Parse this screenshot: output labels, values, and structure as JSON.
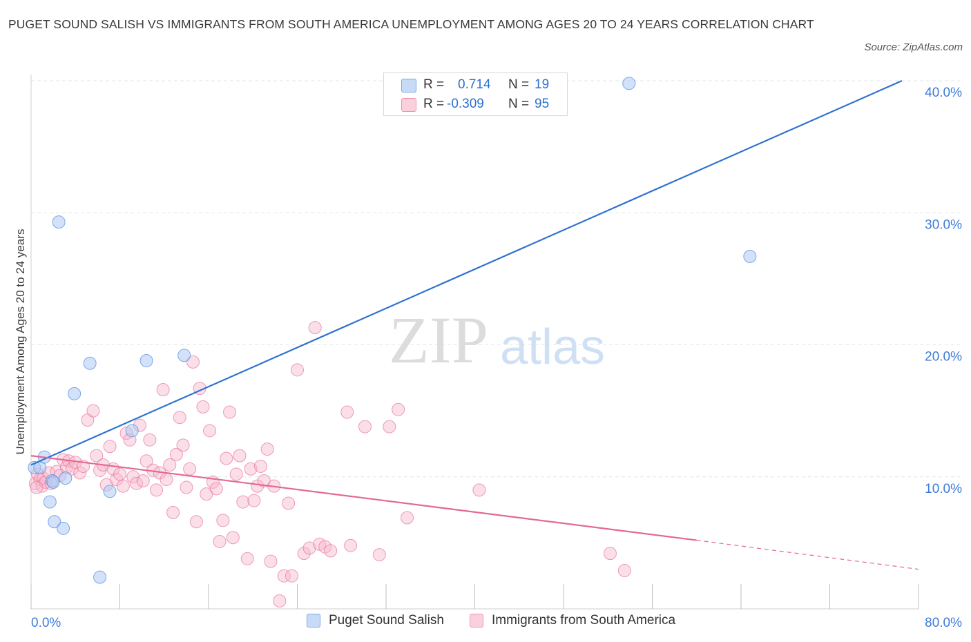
{
  "title": "PUGET SOUND SALISH VS IMMIGRANTS FROM SOUTH AMERICA UNEMPLOYMENT AMONG AGES 20 TO 24 YEARS CORRELATION CHART",
  "source": "Source: ZipAtlas.com",
  "watermark": {
    "zip": "ZIP",
    "atlas": "atlas"
  },
  "stats": [
    {
      "r_label": "R =",
      "r_value": "0.714",
      "n_label": "N =",
      "n_value": "19",
      "color": "#aecbf2"
    },
    {
      "r_label": "R =",
      "r_value": "-0.309",
      "n_label": "N =",
      "n_value": "95",
      "color": "#f6b8cb"
    }
  ],
  "chart_data": {
    "type": "scatter",
    "title": "PUGET SOUND SALISH VS IMMIGRANTS FROM SOUTH AMERICA UNEMPLOYMENT AMONG AGES 20 TO 24 YEARS CORRELATION CHART",
    "xlabel": "",
    "ylabel": "Unemployment Among Ages 20 to 24 years",
    "xlim": [
      0,
      80
    ],
    "ylim": [
      0,
      40
    ],
    "x_tick_labels": [
      "0.0%",
      "80.0%"
    ],
    "y_tick_labels": [
      "10.0%",
      "20.0%",
      "30.0%",
      "40.0%"
    ],
    "y_ticks": [
      10,
      20,
      30,
      40
    ],
    "grid": true,
    "legend": "bottom",
    "series": [
      {
        "name": "Puget Sound Salish",
        "color": "#5b95e6",
        "fill": "#aecbf2",
        "points": [
          [
            0.3,
            10.7
          ],
          [
            0.8,
            10.7
          ],
          [
            1.2,
            11.5
          ],
          [
            1.7,
            8.1
          ],
          [
            1.9,
            9.7
          ],
          [
            2.0,
            9.6
          ],
          [
            2.1,
            6.6
          ],
          [
            2.5,
            29.3
          ],
          [
            2.9,
            6.1
          ],
          [
            3.1,
            9.9
          ],
          [
            3.9,
            16.3
          ],
          [
            5.3,
            18.6
          ],
          [
            6.2,
            2.4
          ],
          [
            7.1,
            8.9
          ],
          [
            9.1,
            13.5
          ],
          [
            10.4,
            18.8
          ],
          [
            13.8,
            19.2
          ],
          [
            53.9,
            39.8
          ],
          [
            64.8,
            26.7
          ]
        ],
        "trend": {
          "x0": 0,
          "y0": 10.9,
          "x1": 78.5,
          "y1": 40.0
        }
      },
      {
        "name": "Immigrants from South America",
        "color": "#e8729a",
        "fill": "#f6b8cb",
        "points": [
          [
            0.4,
            9.5
          ],
          [
            0.6,
            10.2
          ],
          [
            0.8,
            9.8
          ],
          [
            1.0,
            9.3
          ],
          [
            1.1,
            9.9
          ],
          [
            1.3,
            9.6
          ],
          [
            1.6,
            10.3
          ],
          [
            1.8,
            9.5
          ],
          [
            2.3,
            10.4
          ],
          [
            2.6,
            10.1
          ],
          [
            2.9,
            11.3
          ],
          [
            3.2,
            10.7
          ],
          [
            3.4,
            11.2
          ],
          [
            3.7,
            10.6
          ],
          [
            4.0,
            11.1
          ],
          [
            4.4,
            10.3
          ],
          [
            4.7,
            10.8
          ],
          [
            5.1,
            14.3
          ],
          [
            5.6,
            15.0
          ],
          [
            5.9,
            11.6
          ],
          [
            6.2,
            10.5
          ],
          [
            6.5,
            10.9
          ],
          [
            6.8,
            9.4
          ],
          [
            7.1,
            12.3
          ],
          [
            7.4,
            10.6
          ],
          [
            7.7,
            9.8
          ],
          [
            8.0,
            10.2
          ],
          [
            8.3,
            9.3
          ],
          [
            8.6,
            13.3
          ],
          [
            8.9,
            12.8
          ],
          [
            9.2,
            10.0
          ],
          [
            9.5,
            9.5
          ],
          [
            9.8,
            13.9
          ],
          [
            10.1,
            9.7
          ],
          [
            10.4,
            11.2
          ],
          [
            10.7,
            12.8
          ],
          [
            11.0,
            10.5
          ],
          [
            11.3,
            9.0
          ],
          [
            11.6,
            10.3
          ],
          [
            11.9,
            16.6
          ],
          [
            12.2,
            9.8
          ],
          [
            12.5,
            10.9
          ],
          [
            12.8,
            7.3
          ],
          [
            13.1,
            11.7
          ],
          [
            13.4,
            14.5
          ],
          [
            13.7,
            12.4
          ],
          [
            14.0,
            9.2
          ],
          [
            14.3,
            10.6
          ],
          [
            14.6,
            18.7
          ],
          [
            14.9,
            6.6
          ],
          [
            15.2,
            16.7
          ],
          [
            15.5,
            15.3
          ],
          [
            15.8,
            8.7
          ],
          [
            16.1,
            13.5
          ],
          [
            16.4,
            9.6
          ],
          [
            16.7,
            9.1
          ],
          [
            17.0,
            5.1
          ],
          [
            17.3,
            6.7
          ],
          [
            17.6,
            11.4
          ],
          [
            17.9,
            14.9
          ],
          [
            18.2,
            5.4
          ],
          [
            18.5,
            10.2
          ],
          [
            18.8,
            11.6
          ],
          [
            19.1,
            8.1
          ],
          [
            19.5,
            3.8
          ],
          [
            19.8,
            10.6
          ],
          [
            20.1,
            8.2
          ],
          [
            20.4,
            9.3
          ],
          [
            20.7,
            10.8
          ],
          [
            21.0,
            9.7
          ],
          [
            21.3,
            12.1
          ],
          [
            21.6,
            3.6
          ],
          [
            21.9,
            9.3
          ],
          [
            22.4,
            0.6
          ],
          [
            22.8,
            2.5
          ],
          [
            23.2,
            8.0
          ],
          [
            23.5,
            2.5
          ],
          [
            24.0,
            18.1
          ],
          [
            24.6,
            4.2
          ],
          [
            25.1,
            4.6
          ],
          [
            25.6,
            21.3
          ],
          [
            26.0,
            4.9
          ],
          [
            26.5,
            4.7
          ],
          [
            27.0,
            4.4
          ],
          [
            28.5,
            14.9
          ],
          [
            28.8,
            4.8
          ],
          [
            30.1,
            13.8
          ],
          [
            31.4,
            4.1
          ],
          [
            32.3,
            13.8
          ],
          [
            33.1,
            15.1
          ],
          [
            33.9,
            6.9
          ],
          [
            40.4,
            9.0
          ],
          [
            52.2,
            4.2
          ],
          [
            53.5,
            2.9
          ],
          [
            0.5,
            9.2
          ]
        ],
        "trend": {
          "x0": 0,
          "y0": 11.6,
          "x1": 60,
          "y1": 5.2
        },
        "trend_extension": {
          "x0": 60,
          "y0": 5.2,
          "x1": 80,
          "y1": 3.0
        }
      }
    ]
  }
}
